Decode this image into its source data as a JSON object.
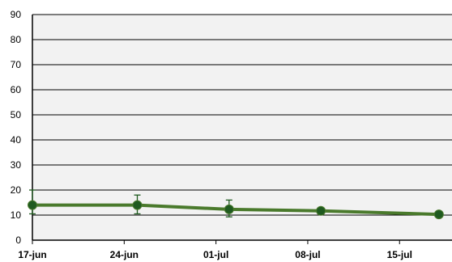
{
  "chart_data": {
    "type": "line",
    "title": "",
    "xlabel": "",
    "ylabel": "",
    "ylim": [
      0,
      90
    ],
    "yticks": [
      0,
      10,
      20,
      30,
      40,
      50,
      60,
      70,
      80,
      90
    ],
    "xlim": [
      "2024-06-17",
      "2024-07-19"
    ],
    "xticks": [
      {
        "date": "2024-06-17",
        "label": "17-jun"
      },
      {
        "date": "2024-06-24",
        "label": "24-jun"
      },
      {
        "date": "2024-07-01",
        "label": "01-jul"
      },
      {
        "date": "2024-07-08",
        "label": "08-jul"
      },
      {
        "date": "2024-07-15",
        "label": "15-jul"
      }
    ],
    "grid": true,
    "legend": "none",
    "series": [
      {
        "color": "#4a7a2c",
        "marker_color": "#1f5a1f",
        "points": [
          {
            "x": "2024-06-17",
            "y": 14,
            "err_low": 10.5,
            "err_high": 20
          },
          {
            "x": "2024-06-25",
            "y": 14,
            "err_low": 10.5,
            "err_high": 18
          },
          {
            "x": "2024-07-02",
            "y": 12.3,
            "err_low": 9.3,
            "err_high": 16
          },
          {
            "x": "2024-07-09",
            "y": 11.7,
            "err_low": 11.7,
            "err_high": 11.7
          },
          {
            "x": "2024-07-18",
            "y": 10.3,
            "err_low": 10.3,
            "err_high": 10.3
          }
        ]
      }
    ],
    "colors": {
      "plot_background": "#f2f2f2",
      "gridline": "#000000",
      "axis": "#000000",
      "error_bar": "#1f5a1f"
    }
  }
}
